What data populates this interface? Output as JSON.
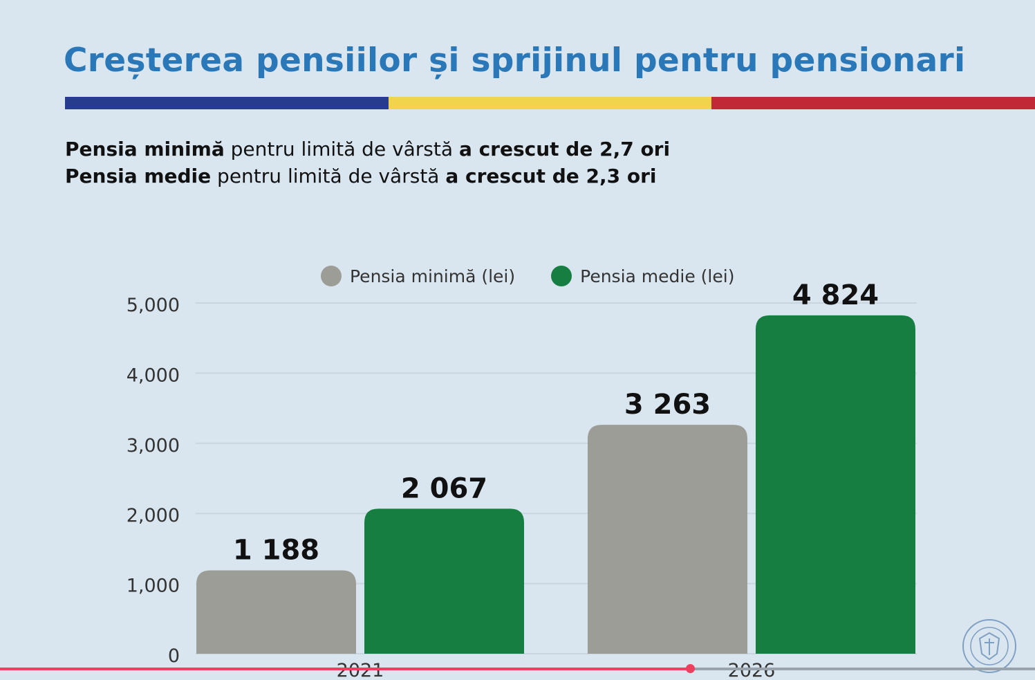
{
  "title": "Creșterea pensiilor și sprijinul pentru pensionari",
  "subtitle": {
    "line1": {
      "bold_a": "Pensia minimă",
      "normal": " pentru limită de vârstă ",
      "bold_b": "a crescut de 2,7 ori"
    },
    "line2": {
      "bold_a": "Pensia medie",
      "normal": " pentru limită de vârstă ",
      "bold_b": "a crescut de 2,3 ori"
    }
  },
  "flag_colors": [
    "#273c8c",
    "#f1d44c",
    "#c02935"
  ],
  "chart_data": {
    "type": "bar",
    "categories": [
      "2021",
      "2026"
    ],
    "series": [
      {
        "name": "Pensia minimă (lei)",
        "color": "#9d9d98",
        "values": [
          1188,
          3263
        ],
        "labels": [
          "1 188",
          "3 263"
        ]
      },
      {
        "name": "Pensia medie (lei)",
        "color": "#177e42",
        "values": [
          2067,
          4824
        ],
        "labels": [
          "2 067",
          "4 824"
        ]
      }
    ],
    "ylim": [
      0,
      5000
    ],
    "yticks": [
      0,
      1000,
      2000,
      3000,
      4000,
      5000
    ],
    "ytick_labels": [
      "0",
      "1,000",
      "2,000",
      "3,000",
      "4,000",
      "5,000"
    ],
    "grid": true,
    "legend": "top"
  },
  "video_progress": 0.667,
  "seal_icon": "government-seal-icon"
}
